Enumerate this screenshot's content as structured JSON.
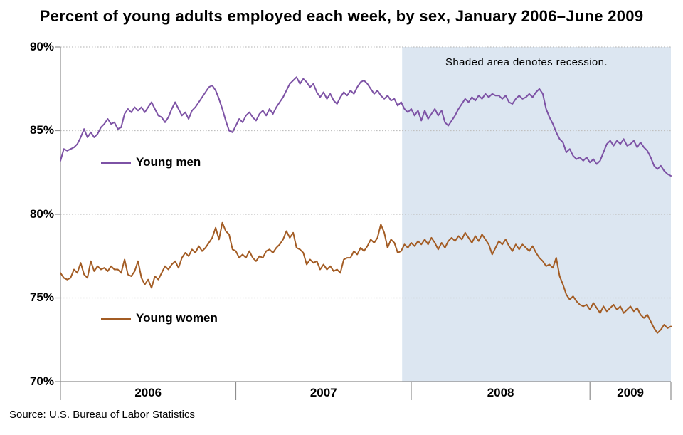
{
  "title": "Percent of young adults employed each week, by sex, January 2006–June 2009",
  "source": "Source: U.S. Bureau of Labor Statistics",
  "colors": {
    "men_line": "#7d52a5",
    "women_line": "#a35c24",
    "recession_band": "#dce6f1",
    "gridline": "#c0c0c0",
    "axis": "#8e8e8e",
    "text": "#000000"
  },
  "chart_data": {
    "type": "line",
    "x_unit": "week",
    "x_range_label": "January 2006 – June 2009",
    "y_axis": {
      "ticks": [
        "90%",
        "85%",
        "80%",
        "75%",
        "70%"
      ],
      "values": [
        90,
        85,
        80,
        75,
        70
      ],
      "gridlines": [
        90,
        85,
        80,
        75
      ],
      "max": 90,
      "min": 70
    },
    "x_axis": {
      "year_labels": [
        "2006",
        "2007",
        "2008",
        "2009"
      ],
      "year_start_weeks": [
        0,
        52,
        104,
        157
      ],
      "end_week": 181
    },
    "recession": {
      "label": "Shaded area denotes recession.",
      "start_week_index": 101.3,
      "end_week_index": 181
    },
    "series": [
      {
        "name": "Young men",
        "color": "#7d52a5",
        "values": [
          83.2,
          83.9,
          83.8,
          83.9,
          84.0,
          84.2,
          84.6,
          85.1,
          84.6,
          84.9,
          84.6,
          84.8,
          85.2,
          85.4,
          85.7,
          85.4,
          85.5,
          85.1,
          85.2,
          86.0,
          86.3,
          86.1,
          86.4,
          86.2,
          86.4,
          86.1,
          86.4,
          86.7,
          86.3,
          85.9,
          85.8,
          85.5,
          85.8,
          86.3,
          86.7,
          86.3,
          85.9,
          86.1,
          85.7,
          86.2,
          86.4,
          86.7,
          87.0,
          87.3,
          87.6,
          87.7,
          87.4,
          86.9,
          86.3,
          85.6,
          85.0,
          84.9,
          85.3,
          85.7,
          85.5,
          85.9,
          86.1,
          85.8,
          85.6,
          86.0,
          86.2,
          85.9,
          86.3,
          86.0,
          86.4,
          86.7,
          87.0,
          87.4,
          87.8,
          88.0,
          88.2,
          87.8,
          88.1,
          87.9,
          87.6,
          87.8,
          87.3,
          87.0,
          87.3,
          86.9,
          87.2,
          86.8,
          86.6,
          87.0,
          87.3,
          87.1,
          87.4,
          87.2,
          87.6,
          87.9,
          88.0,
          87.8,
          87.5,
          87.2,
          87.4,
          87.1,
          86.9,
          87.1,
          86.8,
          86.9,
          86.5,
          86.7,
          86.3,
          86.1,
          86.3,
          85.9,
          86.2,
          85.6,
          86.2,
          85.7,
          86.0,
          86.3,
          85.9,
          86.2,
          85.5,
          85.3,
          85.6,
          85.9,
          86.3,
          86.6,
          86.9,
          86.7,
          87.0,
          86.8,
          87.1,
          86.9,
          87.2,
          87.0,
          87.2,
          87.1,
          87.1,
          86.9,
          87.1,
          86.7,
          86.6,
          86.9,
          87.1,
          86.9,
          87.0,
          87.2,
          87.0,
          87.3,
          87.5,
          87.2,
          86.3,
          85.8,
          85.4,
          84.9,
          84.5,
          84.3,
          83.7,
          83.9,
          83.5,
          83.3,
          83.4,
          83.2,
          83.4,
          83.1,
          83.3,
          83.0,
          83.2,
          83.7,
          84.2,
          84.4,
          84.1,
          84.4,
          84.2,
          84.5,
          84.1,
          84.2,
          84.4,
          84.0,
          84.3,
          84.0,
          83.8,
          83.4,
          82.9,
          82.7,
          82.9,
          82.6,
          82.4,
          82.3
        ]
      },
      {
        "name": "Young women",
        "color": "#a35c24",
        "values": [
          76.5,
          76.2,
          76.1,
          76.2,
          76.7,
          76.5,
          77.1,
          76.4,
          76.2,
          77.2,
          76.6,
          76.9,
          76.7,
          76.8,
          76.6,
          76.9,
          76.7,
          76.7,
          76.5,
          77.3,
          76.4,
          76.3,
          76.6,
          77.2,
          76.2,
          75.8,
          76.1,
          75.6,
          76.3,
          76.1,
          76.5,
          76.9,
          76.7,
          77.0,
          77.2,
          76.8,
          77.4,
          77.7,
          77.5,
          77.9,
          77.7,
          78.1,
          77.8,
          78.0,
          78.3,
          78.6,
          79.2,
          78.5,
          79.5,
          79.0,
          78.8,
          77.9,
          77.8,
          77.4,
          77.6,
          77.4,
          77.8,
          77.4,
          77.2,
          77.5,
          77.4,
          77.8,
          77.9,
          77.7,
          78.0,
          78.2,
          78.5,
          79.0,
          78.6,
          78.9,
          78.0,
          77.9,
          77.7,
          77.0,
          77.3,
          77.1,
          77.2,
          76.7,
          77.0,
          76.7,
          76.9,
          76.6,
          76.7,
          76.5,
          77.3,
          77.4,
          77.4,
          77.8,
          77.6,
          78.0,
          77.8,
          78.1,
          78.5,
          78.3,
          78.6,
          79.4,
          78.9,
          78.0,
          78.5,
          78.3,
          77.7,
          77.8,
          78.2,
          78.0,
          78.3,
          78.1,
          78.4,
          78.2,
          78.5,
          78.2,
          78.6,
          78.3,
          77.9,
          78.3,
          78.0,
          78.4,
          78.6,
          78.4,
          78.7,
          78.5,
          78.9,
          78.6,
          78.3,
          78.7,
          78.4,
          78.8,
          78.5,
          78.2,
          77.6,
          78.0,
          78.4,
          78.2,
          78.5,
          78.1,
          77.8,
          78.2,
          77.9,
          78.2,
          78.0,
          77.8,
          78.1,
          77.7,
          77.4,
          77.2,
          76.9,
          77.0,
          76.8,
          77.4,
          76.3,
          75.8,
          75.2,
          74.9,
          75.1,
          74.8,
          74.6,
          74.5,
          74.6,
          74.3,
          74.7,
          74.4,
          74.1,
          74.5,
          74.2,
          74.4,
          74.6,
          74.3,
          74.5,
          74.1,
          74.3,
          74.5,
          74.2,
          74.4,
          74.0,
          73.8,
          74.0,
          73.6,
          73.2,
          72.9,
          73.1,
          73.4,
          73.2,
          73.3
        ]
      }
    ]
  }
}
